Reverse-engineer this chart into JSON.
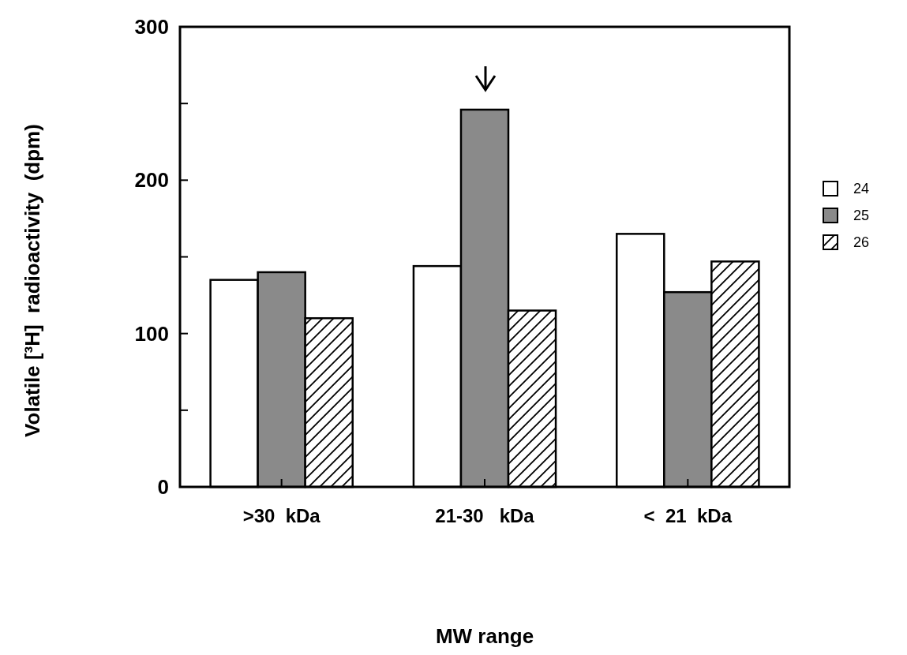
{
  "chart_data": {
    "type": "bar",
    "xlabel": "MW range",
    "ylabel": "Volatile [³H]  radioactivity  (dpm)",
    "categories": [
      ">30  kDa",
      "21-30   kDa",
      "<  21  kDa"
    ],
    "series": [
      {
        "name": "24",
        "color": "#ffffff",
        "values": [
          135,
          144,
          165
        ]
      },
      {
        "name": "25",
        "color": "#8a8a8a",
        "values": [
          140,
          246,
          127
        ]
      },
      {
        "name": "26",
        "color": "#000000",
        "values": [
          110,
          115,
          147
        ]
      }
    ],
    "ylim": [
      0,
      300
    ],
    "yticks": [
      0,
      {
        "value": 50,
        "label": null
      },
      100,
      {
        "value": 150,
        "label": null
      },
      200,
      {
        "value": 250,
        "label": null
      },
      300
    ],
    "grid": false,
    "legend": "right"
  }
}
